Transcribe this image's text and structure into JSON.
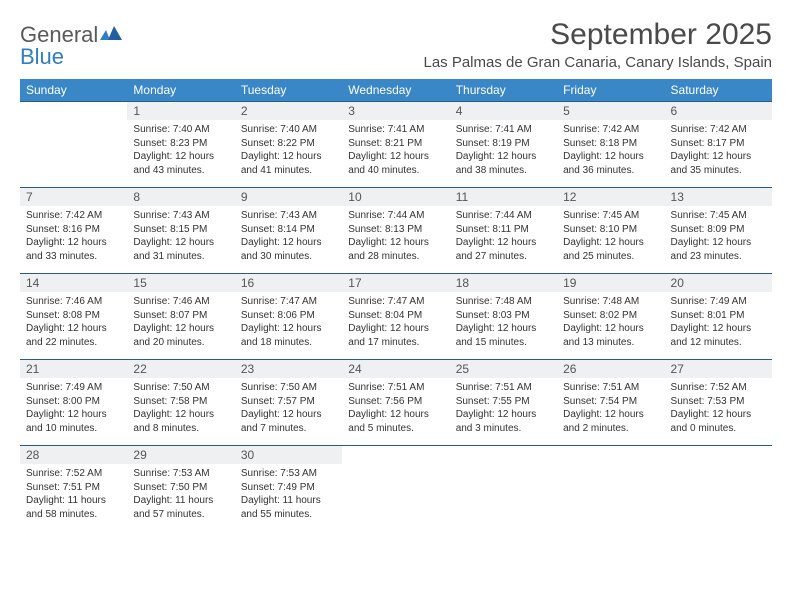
{
  "logo": {
    "word1": "General",
    "word2": "Blue"
  },
  "title": "September 2025",
  "location": "Las Palmas de Gran Canaria, Canary Islands, Spain",
  "colors": {
    "header_bg": "#3a87c8",
    "header_fg": "#ffffff",
    "daynum_bg": "#eef0f2",
    "border": "#2a5a8a",
    "title_color": "#4a4a4a",
    "logo_gray": "#5a5a5a",
    "logo_blue": "#2f7fc1"
  },
  "weekdays": [
    "Sunday",
    "Monday",
    "Tuesday",
    "Wednesday",
    "Thursday",
    "Friday",
    "Saturday"
  ],
  "weeks": [
    [
      {
        "blank": true
      },
      {
        "n": "1",
        "sr": "7:40 AM",
        "ss": "8:23 PM",
        "dl": "12 hours and 43 minutes."
      },
      {
        "n": "2",
        "sr": "7:40 AM",
        "ss": "8:22 PM",
        "dl": "12 hours and 41 minutes."
      },
      {
        "n": "3",
        "sr": "7:41 AM",
        "ss": "8:21 PM",
        "dl": "12 hours and 40 minutes."
      },
      {
        "n": "4",
        "sr": "7:41 AM",
        "ss": "8:19 PM",
        "dl": "12 hours and 38 minutes."
      },
      {
        "n": "5",
        "sr": "7:42 AM",
        "ss": "8:18 PM",
        "dl": "12 hours and 36 minutes."
      },
      {
        "n": "6",
        "sr": "7:42 AM",
        "ss": "8:17 PM",
        "dl": "12 hours and 35 minutes."
      }
    ],
    [
      {
        "n": "7",
        "sr": "7:42 AM",
        "ss": "8:16 PM",
        "dl": "12 hours and 33 minutes."
      },
      {
        "n": "8",
        "sr": "7:43 AM",
        "ss": "8:15 PM",
        "dl": "12 hours and 31 minutes."
      },
      {
        "n": "9",
        "sr": "7:43 AM",
        "ss": "8:14 PM",
        "dl": "12 hours and 30 minutes."
      },
      {
        "n": "10",
        "sr": "7:44 AM",
        "ss": "8:13 PM",
        "dl": "12 hours and 28 minutes."
      },
      {
        "n": "11",
        "sr": "7:44 AM",
        "ss": "8:11 PM",
        "dl": "12 hours and 27 minutes."
      },
      {
        "n": "12",
        "sr": "7:45 AM",
        "ss": "8:10 PM",
        "dl": "12 hours and 25 minutes."
      },
      {
        "n": "13",
        "sr": "7:45 AM",
        "ss": "8:09 PM",
        "dl": "12 hours and 23 minutes."
      }
    ],
    [
      {
        "n": "14",
        "sr": "7:46 AM",
        "ss": "8:08 PM",
        "dl": "12 hours and 22 minutes."
      },
      {
        "n": "15",
        "sr": "7:46 AM",
        "ss": "8:07 PM",
        "dl": "12 hours and 20 minutes."
      },
      {
        "n": "16",
        "sr": "7:47 AM",
        "ss": "8:06 PM",
        "dl": "12 hours and 18 minutes."
      },
      {
        "n": "17",
        "sr": "7:47 AM",
        "ss": "8:04 PM",
        "dl": "12 hours and 17 minutes."
      },
      {
        "n": "18",
        "sr": "7:48 AM",
        "ss": "8:03 PM",
        "dl": "12 hours and 15 minutes."
      },
      {
        "n": "19",
        "sr": "7:48 AM",
        "ss": "8:02 PM",
        "dl": "12 hours and 13 minutes."
      },
      {
        "n": "20",
        "sr": "7:49 AM",
        "ss": "8:01 PM",
        "dl": "12 hours and 12 minutes."
      }
    ],
    [
      {
        "n": "21",
        "sr": "7:49 AM",
        "ss": "8:00 PM",
        "dl": "12 hours and 10 minutes."
      },
      {
        "n": "22",
        "sr": "7:50 AM",
        "ss": "7:58 PM",
        "dl": "12 hours and 8 minutes."
      },
      {
        "n": "23",
        "sr": "7:50 AM",
        "ss": "7:57 PM",
        "dl": "12 hours and 7 minutes."
      },
      {
        "n": "24",
        "sr": "7:51 AM",
        "ss": "7:56 PM",
        "dl": "12 hours and 5 minutes."
      },
      {
        "n": "25",
        "sr": "7:51 AM",
        "ss": "7:55 PM",
        "dl": "12 hours and 3 minutes."
      },
      {
        "n": "26",
        "sr": "7:51 AM",
        "ss": "7:54 PM",
        "dl": "12 hours and 2 minutes."
      },
      {
        "n": "27",
        "sr": "7:52 AM",
        "ss": "7:53 PM",
        "dl": "12 hours and 0 minutes."
      }
    ],
    [
      {
        "n": "28",
        "sr": "7:52 AM",
        "ss": "7:51 PM",
        "dl": "11 hours and 58 minutes."
      },
      {
        "n": "29",
        "sr": "7:53 AM",
        "ss": "7:50 PM",
        "dl": "11 hours and 57 minutes."
      },
      {
        "n": "30",
        "sr": "7:53 AM",
        "ss": "7:49 PM",
        "dl": "11 hours and 55 minutes."
      },
      {
        "blank": true
      },
      {
        "blank": true
      },
      {
        "blank": true
      },
      {
        "blank": true
      }
    ]
  ],
  "labels": {
    "sunrise": "Sunrise:",
    "sunset": "Sunset:",
    "daylight": "Daylight:"
  }
}
